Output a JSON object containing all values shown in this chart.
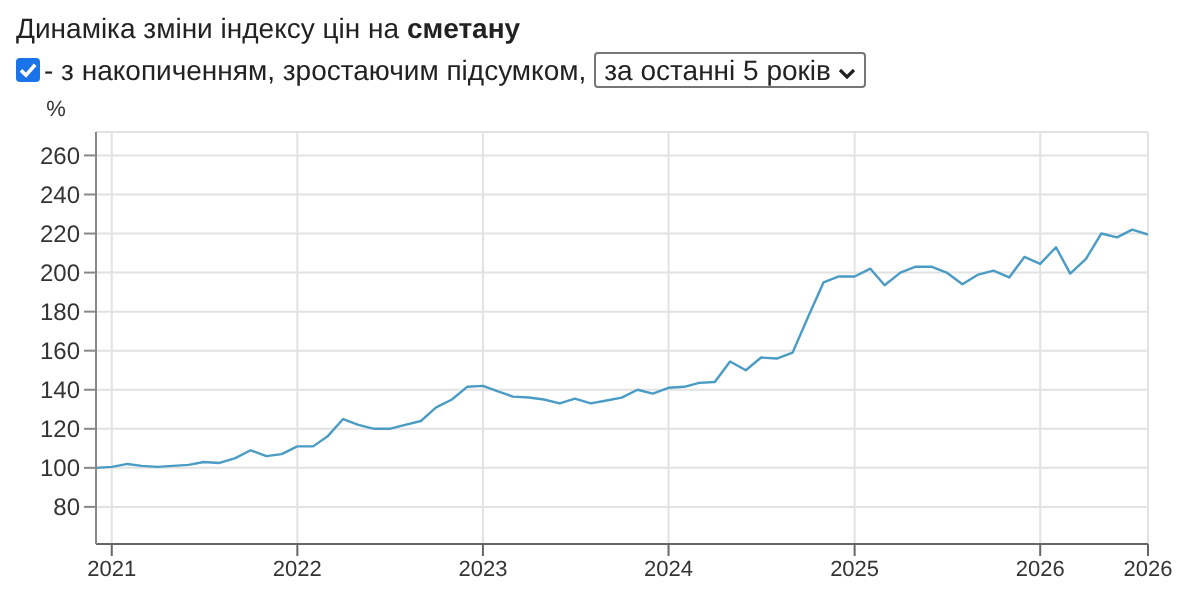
{
  "chart_data": {
    "type": "line",
    "title": "Динаміка зміни індексу цін на сметану",
    "subtitle": "- з накопиченням, зростаючим підсумком,",
    "annotations": [
      "за останні 5 років"
    ],
    "ylabel": "%",
    "x": [
      "2020-12",
      "2021-01",
      "2021-02",
      "2021-03",
      "2021-04",
      "2021-05",
      "2021-06",
      "2021-07",
      "2021-08",
      "2021-09",
      "2021-10",
      "2021-11",
      "2021-12",
      "2022-01",
      "2022-02",
      "2022-03",
      "2022-04",
      "2022-05",
      "2022-06",
      "2022-07",
      "2022-08",
      "2022-09",
      "2022-10",
      "2022-11",
      "2022-12",
      "2023-01",
      "2023-02",
      "2023-03",
      "2023-04",
      "2023-05",
      "2023-06",
      "2023-07",
      "2023-08",
      "2023-09",
      "2023-10",
      "2023-11",
      "2023-12",
      "2024-01",
      "2024-02",
      "2024-03",
      "2024-04",
      "2024-05",
      "2024-06",
      "2024-07",
      "2024-08",
      "2024-09",
      "2024-10",
      "2024-11",
      "2024-12",
      "2025-01",
      "2025-02",
      "2025-03",
      "2025-04",
      "2025-05",
      "2025-06",
      "2025-07",
      "2025-08",
      "2025-09",
      "2025-10",
      "2025-11",
      "2025-12",
      "2026-01",
      "2026-02",
      "2026-03",
      "2026-04",
      "2026-05",
      "2026-06",
      "2026-07",
      "2026-08"
    ],
    "series": [
      {
        "color": "#4a9cc4",
        "values": [
          100,
          100.5,
          102,
          101,
          100.5,
          101,
          101.5,
          103,
          102.5,
          105,
          109,
          106,
          107,
          111,
          111,
          116,
          125,
          122,
          120,
          120,
          122,
          124,
          131,
          135,
          141.5,
          142,
          139,
          136.5,
          136,
          135,
          133,
          135.5,
          133,
          134.5,
          136,
          140,
          138,
          141,
          141.5,
          143.5,
          144,
          154.5,
          150,
          156.5,
          156,
          159,
          177,
          195,
          198,
          198,
          202,
          193.5,
          200,
          203,
          203,
          200,
          194,
          199,
          201,
          197.5,
          208,
          204.5,
          213,
          199.5,
          207,
          220,
          218,
          222,
          219.5
        ]
      }
    ],
    "xlim": [
      "2020-12",
      "2026-08"
    ],
    "xticks": [
      {
        "value": "2021-01",
        "label": "2021"
      },
      {
        "value": "2022-01",
        "label": "2022"
      },
      {
        "value": "2023-01",
        "label": "2023"
      },
      {
        "value": "2024-01",
        "label": "2024"
      },
      {
        "value": "2025-01",
        "label": "2025"
      },
      {
        "value": "2026-01",
        "label": "2026"
      },
      {
        "value": "2026-08",
        "label": "2026"
      }
    ],
    "ylim": [
      61,
      272
    ],
    "yticks": [
      80,
      100,
      120,
      140,
      160,
      180,
      200,
      220,
      240,
      260
    ],
    "grid": true,
    "marker": "none",
    "line_style": "solid"
  }
}
